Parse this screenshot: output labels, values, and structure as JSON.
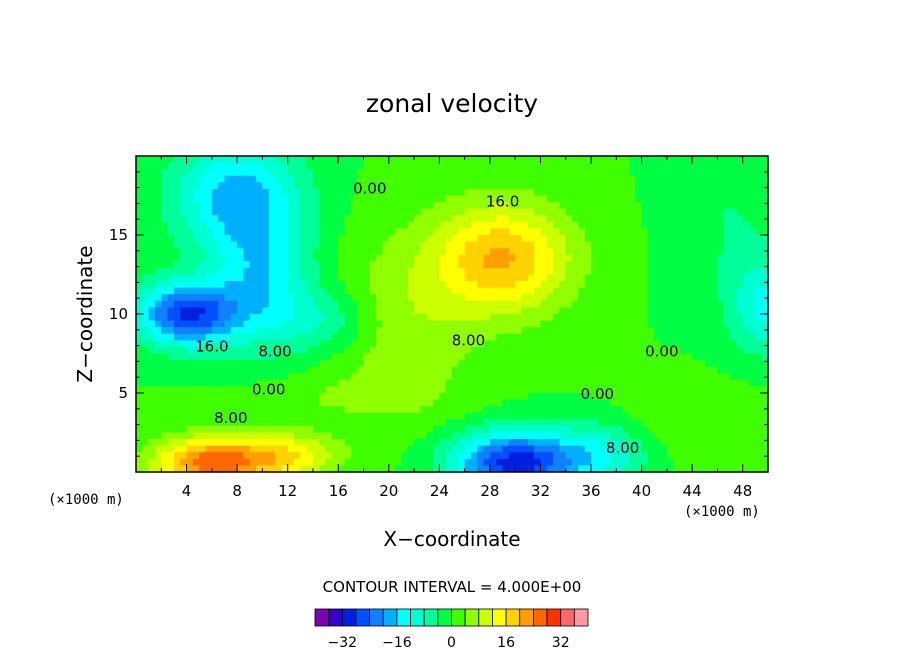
{
  "chart_data": {
    "type": "heatmap",
    "title": "zonal velocity",
    "xlabel": "X−coordinate",
    "ylabel": "Z−coordinate",
    "x_unit": "(×1000 m)",
    "x_unit_right": "(×1000 m)",
    "xlim": [
      0,
      50
    ],
    "ylim": [
      0,
      20
    ],
    "x_ticks": [
      4,
      8,
      12,
      16,
      20,
      24,
      28,
      32,
      36,
      40,
      44,
      48
    ],
    "x_tick_labels": [
      "4",
      "8",
      "12",
      "16",
      "20",
      "24",
      "28",
      "32",
      "36",
      "40",
      "44",
      "48"
    ],
    "y_ticks": [
      5,
      10,
      15
    ],
    "y_tick_labels": [
      "5",
      "10",
      "15"
    ],
    "contour_interval_text": "CONTOUR INTERVAL = 4.000E+00",
    "contour_labels": [
      {
        "text": "16.0",
        "x": 29,
        "y": 17.1
      },
      {
        "text": "0.00",
        "x": 18.5,
        "y": 17.9
      },
      {
        "text": "8.00",
        "x": 26.3,
        "y": 8.3
      },
      {
        "text": "0.00",
        "x": 41.6,
        "y": 7.6
      },
      {
        "text": "16.0",
        "x": 6,
        "y": 7.9
      },
      {
        "text": "8.00",
        "x": 11,
        "y": 7.6
      },
      {
        "text": "0.00",
        "x": 10.5,
        "y": 5.2
      },
      {
        "text": "0.00",
        "x": 36.5,
        "y": 4.9
      },
      {
        "text": "8.00",
        "x": 7.5,
        "y": 3.4
      },
      {
        "text": "8.00",
        "x": 38.5,
        "y": 1.5
      }
    ],
    "field_features": [
      {
        "x": 29,
        "y": 13.5,
        "value": 20,
        "sx": 5.5,
        "sy": 3.5
      },
      {
        "x": 21,
        "y": 9,
        "value": 7,
        "sx": 6,
        "sy": 6
      },
      {
        "x": 6,
        "y": 0.6,
        "value": 26,
        "sx": 4.5,
        "sy": 1.6
      },
      {
        "x": 12,
        "y": 1,
        "value": 14,
        "sx": 4,
        "sy": 1.5
      },
      {
        "x": 15,
        "y": 4.7,
        "value": 3,
        "sx": 8,
        "sy": 1.2
      },
      {
        "x": 30,
        "y": 0.6,
        "value": -30,
        "sx": 5,
        "sy": 2
      },
      {
        "x": 37,
        "y": 1.2,
        "value": -10,
        "sx": 4,
        "sy": 2
      },
      {
        "x": 4,
        "y": 10,
        "value": -28,
        "sx": 4,
        "sy": 2
      },
      {
        "x": 8,
        "y": 17.5,
        "value": -18,
        "sx": 5,
        "sy": 3.5
      },
      {
        "x": 10,
        "y": 12,
        "value": -14,
        "sx": 4,
        "sy": 4
      },
      {
        "x": 15,
        "y": 9.5,
        "value": -8,
        "sx": 4,
        "sy": 2
      },
      {
        "x": 50,
        "y": 10.5,
        "value": -13,
        "sx": 3,
        "sy": 3
      },
      {
        "x": 47,
        "y": 16,
        "value": -4,
        "sx": 4,
        "sy": 5
      },
      {
        "x": 44,
        "y": 3,
        "value": 4,
        "sx": 6,
        "sy": 2.5
      }
    ],
    "colorbar": {
      "levels": [
        -36,
        -32,
        -28,
        -24,
        -20,
        -16,
        -12,
        -8,
        -4,
        0,
        4,
        8,
        12,
        16,
        20,
        24,
        28,
        32,
        36
      ],
      "colors": [
        "#7f00b0",
        "#3300cc",
        "#0020e0",
        "#0050ff",
        "#1080ff",
        "#00b0ff",
        "#00ffff",
        "#00ffd0",
        "#00ff99",
        "#00ff44",
        "#40ff00",
        "#90ff00",
        "#ccff00",
        "#ffff00",
        "#ffd200",
        "#ffa000",
        "#ff6800",
        "#ff3300",
        "#ff6666",
        "#ff9aa0"
      ],
      "tick_values": [
        -32,
        -16,
        0,
        16,
        32
      ],
      "tick_labels": [
        "−32",
        "−16",
        "0",
        "16",
        "32"
      ]
    }
  }
}
